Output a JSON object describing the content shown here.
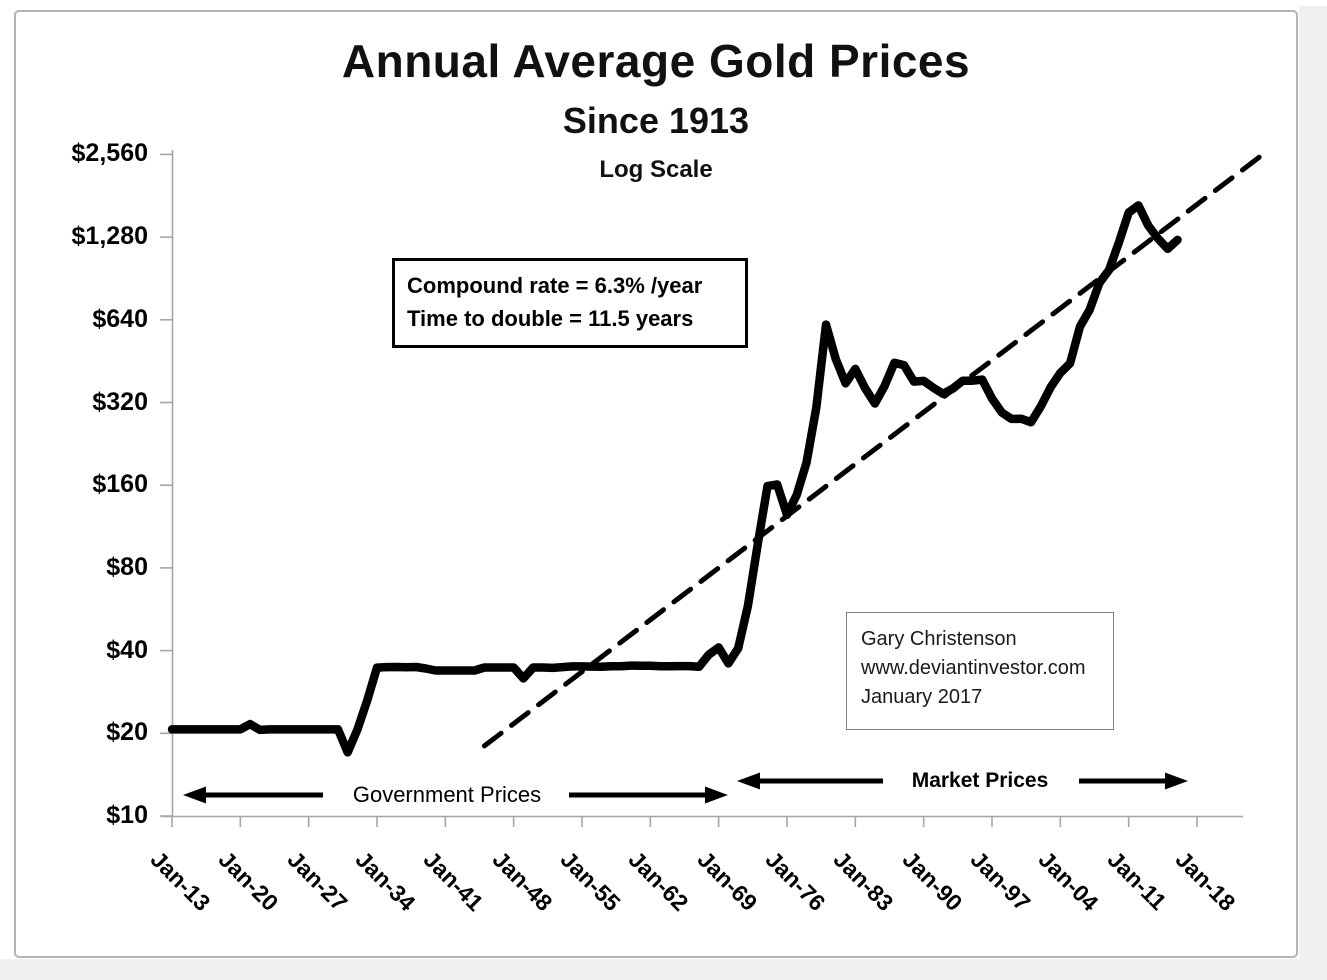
{
  "window": {
    "background": "#ffffff",
    "edge_strip_color": "#f0f0f1",
    "panel_border_color": "#b3b3b3",
    "ink_color": "#000000",
    "axis_color": "#a6a6a6"
  },
  "chart_data": {
    "type": "line",
    "title": "Annual Average Gold Prices",
    "subtitle": "Since 1913",
    "scale_label": "Log Scale",
    "grid": false,
    "legend": "none",
    "y_axis": {
      "scale": "log2",
      "unit": "USD",
      "ylim": [
        10,
        2560
      ],
      "tick_labels": [
        "$2,560",
        "$1,280",
        "$640",
        "$320",
        "$160",
        "$80",
        "$40",
        "$20",
        "$10"
      ],
      "tick_values": [
        2560,
        1280,
        640,
        320,
        160,
        80,
        40,
        20,
        10
      ]
    },
    "x_axis": {
      "tick_labels": [
        "Jan-13",
        "Jan-20",
        "Jan-27",
        "Jan-34",
        "Jan-41",
        "Jan-48",
        "Jan-55",
        "Jan-62",
        "Jan-69",
        "Jan-76",
        "Jan-83",
        "Jan-90",
        "Jan-97",
        "Jan-04",
        "Jan-11",
        "Jan-18"
      ],
      "tick_years": [
        1913,
        1920,
        1927,
        1934,
        1941,
        1948,
        1955,
        1962,
        1969,
        1976,
        1983,
        1990,
        1997,
        2004,
        2011,
        2018
      ]
    },
    "series": [
      {
        "name": "annual-average-gold-price",
        "line_style": "solid",
        "color": "#000000",
        "years": [
          1913,
          1914,
          1915,
          1916,
          1917,
          1918,
          1919,
          1920,
          1921,
          1922,
          1923,
          1924,
          1925,
          1926,
          1927,
          1928,
          1929,
          1930,
          1931,
          1932,
          1933,
          1934,
          1935,
          1936,
          1937,
          1938,
          1939,
          1940,
          1941,
          1942,
          1943,
          1944,
          1945,
          1946,
          1947,
          1948,
          1949,
          1950,
          1951,
          1952,
          1953,
          1954,
          1955,
          1956,
          1957,
          1958,
          1959,
          1960,
          1961,
          1962,
          1963,
          1964,
          1965,
          1966,
          1967,
          1968,
          1969,
          1970,
          1971,
          1972,
          1973,
          1974,
          1975,
          1976,
          1977,
          1978,
          1979,
          1980,
          1981,
          1982,
          1983,
          1984,
          1985,
          1986,
          1987,
          1988,
          1989,
          1990,
          1991,
          1992,
          1993,
          1994,
          1995,
          1996,
          1997,
          1998,
          1999,
          2000,
          2001,
          2002,
          2003,
          2004,
          2005,
          2006,
          2007,
          2008,
          2009,
          2010,
          2011,
          2012,
          2013,
          2014,
          2015,
          2016
        ],
        "prices": [
          20.67,
          20.67,
          20.67,
          20.67,
          20.67,
          20.67,
          20.67,
          20.67,
          21.6,
          20.58,
          20.67,
          20.67,
          20.67,
          20.67,
          20.67,
          20.67,
          20.67,
          20.67,
          17.06,
          20.69,
          26.33,
          34.69,
          34.84,
          34.87,
          34.79,
          34.85,
          34.42,
          33.85,
          33.85,
          33.85,
          33.85,
          33.85,
          34.71,
          34.71,
          34.71,
          34.71,
          31.69,
          34.72,
          34.72,
          34.6,
          34.84,
          35.04,
          35.03,
          34.99,
          34.95,
          35.1,
          35.1,
          35.27,
          35.25,
          35.23,
          35.09,
          35.1,
          35.12,
          35.13,
          34.95,
          38.69,
          41.09,
          35.94,
          40.8,
          58.16,
          97.32,
          158.8,
          160.9,
          124.8,
          147.8,
          193.4,
          306.7,
          615.0,
          460.0,
          375.8,
          424.0,
          360.8,
          317.3,
          367.9,
          446.5,
          436.9,
          381.4,
          383.5,
          362.1,
          343.8,
          359.8,
          384.0,
          384.2,
          387.8,
          331.0,
          294.2,
          278.9,
          279.1,
          271.0,
          309.7,
          363.4,
          409.7,
          444.7,
          603.5,
          695.4,
          871.9,
          972.4,
          1224.5,
          1571.5,
          1669.0,
          1411.2,
          1266.4,
          1160.1,
          1250.8
        ]
      },
      {
        "name": "compound-growth-trend",
        "line_style": "dashed",
        "color": "#000000",
        "years": [
          1945,
          2025
        ],
        "prices": [
          18,
          2600
        ]
      }
    ],
    "annotations": {
      "rate_box": {
        "lines": [
          "Compound rate = 6.3% /year",
          "Time to double = 11.5 years"
        ]
      },
      "credit_box": {
        "lines": [
          "Gary Christenson",
          "www.deviantinvestor.com",
          "January 2017"
        ]
      },
      "government_span": {
        "label": "Government Prices"
      },
      "market_span": {
        "label": "Market Prices"
      }
    }
  }
}
